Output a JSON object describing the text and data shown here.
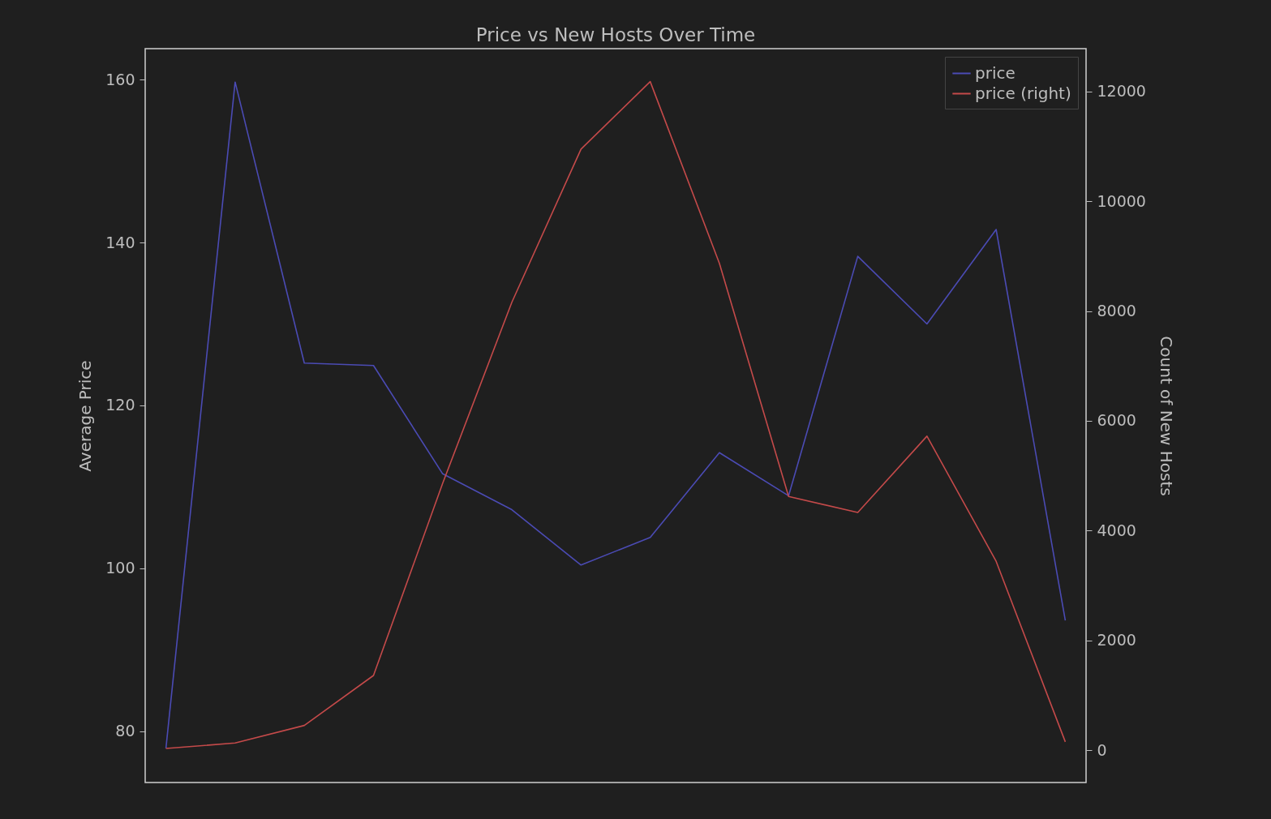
{
  "chart_data": {
    "type": "line",
    "title": "Price vs New Hosts Over Time",
    "ylabel": "Average Price",
    "y2label": "Count of New Hosts",
    "categories": [
      null,
      null,
      null,
      null,
      null,
      null,
      null,
      null,
      null,
      null,
      null,
      null,
      null,
      null
    ],
    "series": [
      {
        "name": "price",
        "color": "#4b4bb4",
        "values": [
          77.9,
          159.7,
          125.2,
          124.9,
          111.6,
          107.2,
          100.4,
          103.8,
          114.2,
          108.9,
          138.3,
          130.0,
          141.6,
          93.6
        ]
      },
      {
        "name": "price (right)",
        "color": "#c44a4a",
        "axis": "y2",
        "values": [
          30,
          130,
          450,
          1360,
          4860,
          8160,
          10950,
          12180,
          8870,
          4620,
          4330,
          5720,
          3440,
          150
        ]
      }
    ],
    "ylim": [
      73.7,
      163.8
    ],
    "yticks": [
      80,
      100,
      120,
      140,
      160
    ],
    "y2lim": [
      -590,
      12780
    ],
    "y2ticks": [
      0,
      2000,
      4000,
      6000,
      8000,
      10000,
      12000
    ],
    "tick_labels": "y",
    "legend": "top right",
    "grid": false
  }
}
